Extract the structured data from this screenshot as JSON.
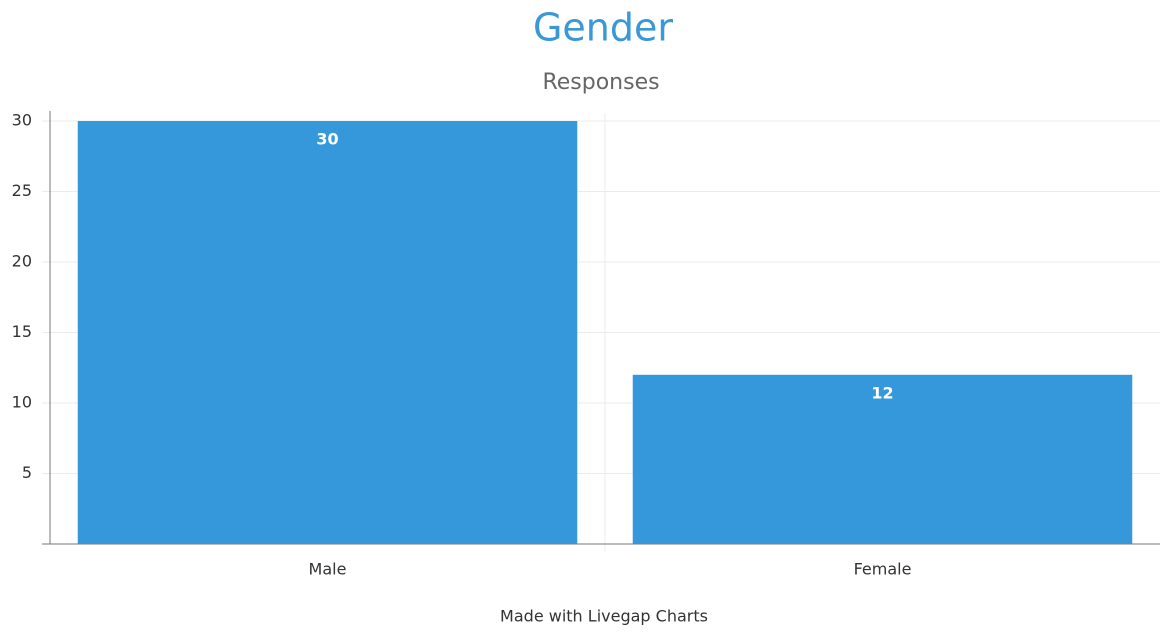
{
  "chart_data": {
    "type": "bar",
    "title": "Gender",
    "subtitle": "Responses",
    "categories": [
      "Male",
      "Female"
    ],
    "values": [
      30,
      12
    ],
    "color": "#3598db",
    "ylim": [
      0,
      30
    ],
    "yticks": [
      5,
      10,
      15,
      20,
      25,
      30
    ],
    "grid": true,
    "footer": "Made with Livegap Charts"
  }
}
